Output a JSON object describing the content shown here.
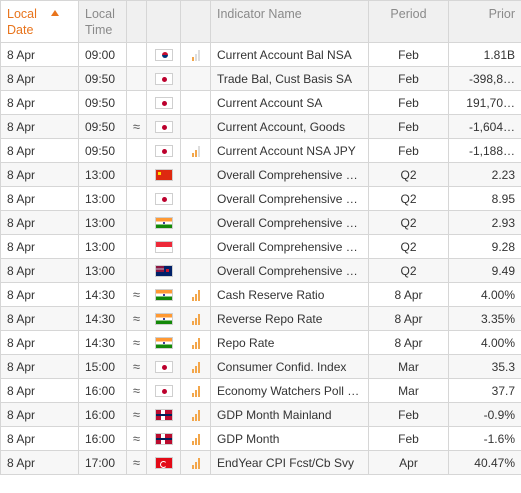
{
  "header": {
    "date_line1": "Local",
    "date_line2": "Date",
    "time_line1": "Local",
    "time_line2": "Time",
    "indicator": "Indicator Name",
    "period": "Period",
    "prior": "Prior"
  },
  "colors": {
    "accent": "#e8741c",
    "importance": "#f3a64a"
  },
  "rows": [
    {
      "date": "8 Apr",
      "time": "09:00",
      "vol": "",
      "flag": "korea-flag-icon",
      "imp": 1,
      "name": "Current Account Bal NSA",
      "period": "Feb",
      "prior": "1.81B"
    },
    {
      "date": "8 Apr",
      "time": "09:50",
      "vol": "",
      "flag": "japan-flag-icon",
      "imp": 0,
      "name": "Trade Bal, Cust Basis SA",
      "period": "Feb",
      "prior": "-398,8…"
    },
    {
      "date": "8 Apr",
      "time": "09:50",
      "vol": "",
      "flag": "japan-flag-icon",
      "imp": 0,
      "name": "Current Account SA",
      "period": "Feb",
      "prior": "191,70…"
    },
    {
      "date": "8 Apr",
      "time": "09:50",
      "vol": "≈",
      "flag": "japan-flag-icon",
      "imp": 0,
      "name": "Current Account, Goods",
      "period": "Feb",
      "prior": "-1,604…"
    },
    {
      "date": "8 Apr",
      "time": "09:50",
      "vol": "",
      "flag": "japan-flag-icon",
      "imp": 2,
      "name": "Current Account NSA JPY",
      "period": "Feb",
      "prior": "-1,188…"
    },
    {
      "date": "8 Apr",
      "time": "13:00",
      "vol": "",
      "flag": "china-flag-icon",
      "imp": 0,
      "name": "Overall Comprehensive …",
      "period": "Q2",
      "prior": "2.23"
    },
    {
      "date": "8 Apr",
      "time": "13:00",
      "vol": "",
      "flag": "japan-flag-icon",
      "imp": 0,
      "name": "Overall Comprehensive …",
      "period": "Q2",
      "prior": "8.95"
    },
    {
      "date": "8 Apr",
      "time": "13:00",
      "vol": "",
      "flag": "india-flag-icon",
      "imp": 0,
      "name": "Overall Comprehensive …",
      "period": "Q2",
      "prior": "2.93"
    },
    {
      "date": "8 Apr",
      "time": "13:00",
      "vol": "",
      "flag": "singapore-flag-icon",
      "imp": 0,
      "name": "Overall Comprehensive …",
      "period": "Q2",
      "prior": "9.28"
    },
    {
      "date": "8 Apr",
      "time": "13:00",
      "vol": "",
      "flag": "new-zealand-flag-icon",
      "imp": 0,
      "name": "Overall Comprehensive …",
      "period": "Q2",
      "prior": "9.49"
    },
    {
      "date": "8 Apr",
      "time": "14:30",
      "vol": "≈",
      "flag": "india-flag-icon",
      "imp": 3,
      "name": "Cash Reserve Ratio",
      "period": "8 Apr",
      "prior": "4.00%"
    },
    {
      "date": "8 Apr",
      "time": "14:30",
      "vol": "≈",
      "flag": "india-flag-icon",
      "imp": 3,
      "name": "Reverse Repo Rate",
      "period": "8 Apr",
      "prior": "3.35%"
    },
    {
      "date": "8 Apr",
      "time": "14:30",
      "vol": "≈",
      "flag": "india-flag-icon",
      "imp": 3,
      "name": "Repo Rate",
      "period": "8 Apr",
      "prior": "4.00%"
    },
    {
      "date": "8 Apr",
      "time": "15:00",
      "vol": "≈",
      "flag": "japan-flag-icon",
      "imp": 3,
      "name": "Consumer Confid. Index",
      "period": "Mar",
      "prior": "35.3"
    },
    {
      "date": "8 Apr",
      "time": "16:00",
      "vol": "≈",
      "flag": "japan-flag-icon",
      "imp": 3,
      "name": "Economy Watchers Poll SA",
      "period": "Mar",
      "prior": "37.7"
    },
    {
      "date": "8 Apr",
      "time": "16:00",
      "vol": "≈",
      "flag": "norway-flag-icon",
      "imp": 3,
      "name": "GDP Month Mainland",
      "period": "Feb",
      "prior": "-0.9%"
    },
    {
      "date": "8 Apr",
      "time": "16:00",
      "vol": "≈",
      "flag": "norway-flag-icon",
      "imp": 3,
      "name": "GDP Month",
      "period": "Feb",
      "prior": "-1.6%"
    },
    {
      "date": "8 Apr",
      "time": "17:00",
      "vol": "≈",
      "flag": "turkey-flag-icon",
      "imp": 3,
      "name": "EndYear CPI Fcst/Cb Svy",
      "period": "Apr",
      "prior": "40.47%"
    }
  ]
}
